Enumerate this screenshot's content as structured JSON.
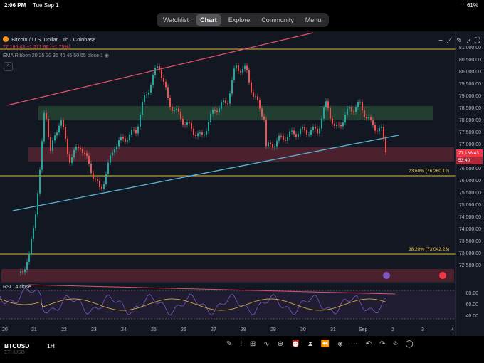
{
  "status": {
    "time": "2:06 PM",
    "date": "Tue Sep 1",
    "battery": "61%"
  },
  "nav": {
    "tabs": [
      "Watchlist",
      "Chart",
      "Explore",
      "Community",
      "Menu"
    ],
    "active": "Chart"
  },
  "chart": {
    "title": "Bitcoin / U.S. Dollar · 1h · Coinbase",
    "ohlc": "77,186.43 −1,371.98 (−1.75%)",
    "ema": "EMA Ribbon 20 25 30 35 40 45 50 55 close 1",
    "rsi_label": "RSI 14 close",
    "price_ticks": [
      "81,000.00",
      "80,500.00",
      "80,000.00",
      "79,500.00",
      "79,000.00",
      "78,500.00",
      "78,000.00",
      "77,500.00",
      "77,000.00",
      "76,500.00",
      "76,000.00",
      "75,500.00",
      "75,000.00",
      "74,500.00",
      "74,000.00",
      "73,500.00",
      "73,000.00",
      "72,500.00"
    ],
    "price_tag": "77,186.43",
    "price_tag_sub": "53:40",
    "fib_1": "23.60% (76,260.12)",
    "fib_2": "38.20% (73,042.23)",
    "rsi_ticks": [
      "80.00",
      "60.00",
      "40.00"
    ],
    "time_ticks": [
      "20",
      "21",
      "22",
      "23",
      "24",
      "25",
      "26",
      "27",
      "28",
      "29",
      "30",
      "31",
      "Sep",
      "2",
      "3",
      "4"
    ],
    "colors": {
      "up": "#26a69a",
      "down": "#ef5350",
      "fib": "#e2b93b",
      "trend_up": "#5ab4d6",
      "trend_top": "#e0536b"
    }
  },
  "bottom": {
    "symbol": "BTCUSD",
    "symbol2": "ETHUSD",
    "timeframe": "1H"
  }
}
